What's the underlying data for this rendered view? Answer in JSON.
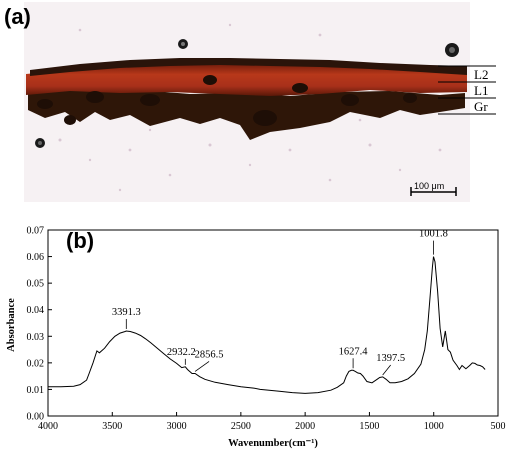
{
  "panel_a": {
    "label": "(a)",
    "layers": [
      "L2",
      "L1",
      "Gr"
    ],
    "scale_bar": "100 μm",
    "colors": {
      "background": "#f7f2f3",
      "red_layer": "#a52a12",
      "dark_layer": "#3a1a0a",
      "ground": "#2a1408"
    }
  },
  "panel_b": {
    "label": "(b)"
  },
  "chart_data": {
    "type": "line",
    "xlabel": "Wavenumber(cm⁻¹)",
    "ylabel": "Absorbance",
    "xlim": [
      4000,
      500
    ],
    "ylim": [
      0,
      0.07
    ],
    "x_ticks": [
      "4000",
      "3500",
      "3000",
      "2500",
      "2000",
      "1500",
      "1000",
      "500"
    ],
    "y_ticks": [
      "0.00",
      "0.01",
      "0.02",
      "0.03",
      "0.04",
      "0.05",
      "0.06",
      "0.07"
    ],
    "grid": false,
    "series": [
      {
        "x": [
          4000,
          3900,
          3800,
          3750,
          3700,
          3680,
          3650,
          3620,
          3600,
          3560,
          3520,
          3480,
          3440,
          3400,
          3391,
          3360,
          3320,
          3280,
          3240,
          3200,
          3150,
          3100,
          3050,
          3000,
          2960,
          2932,
          2915,
          2880,
          2856,
          2820,
          2780,
          2700,
          2600,
          2500,
          2400,
          2350,
          2300,
          2200,
          2100,
          2000,
          1900,
          1800,
          1750,
          1700,
          1680,
          1660,
          1640,
          1627,
          1610,
          1590,
          1570,
          1550,
          1520,
          1480,
          1440,
          1420,
          1397,
          1370,
          1340,
          1300,
          1250,
          1200,
          1150,
          1100,
          1070,
          1050,
          1030,
          1010,
          1002,
          990,
          970,
          950,
          930,
          910,
          890,
          870,
          850,
          820,
          800,
          780,
          750,
          720,
          700,
          680,
          660,
          640,
          620,
          600
        ],
        "y": [
          0.011,
          0.011,
          0.0112,
          0.0118,
          0.0135,
          0.016,
          0.02,
          0.0245,
          0.0238,
          0.0255,
          0.028,
          0.03,
          0.0312,
          0.0318,
          0.032,
          0.0318,
          0.0312,
          0.0303,
          0.029,
          0.0275,
          0.0255,
          0.0235,
          0.0215,
          0.0198,
          0.0182,
          0.0185,
          0.0175,
          0.016,
          0.016,
          0.0148,
          0.0138,
          0.0127,
          0.0118,
          0.011,
          0.0105,
          0.01,
          0.0098,
          0.0093,
          0.0088,
          0.0085,
          0.0088,
          0.0097,
          0.0108,
          0.0125,
          0.015,
          0.0168,
          0.0172,
          0.0172,
          0.0168,
          0.0162,
          0.016,
          0.015,
          0.013,
          0.0125,
          0.0138,
          0.0145,
          0.0147,
          0.0138,
          0.0125,
          0.0125,
          0.013,
          0.014,
          0.016,
          0.0195,
          0.025,
          0.032,
          0.044,
          0.056,
          0.06,
          0.058,
          0.047,
          0.033,
          0.026,
          0.032,
          0.025,
          0.024,
          0.021,
          0.019,
          0.0175,
          0.019,
          0.0178,
          0.019,
          0.02,
          0.0198,
          0.0192,
          0.019,
          0.0185,
          0.0175
        ]
      }
    ],
    "annotations": [
      {
        "text": "3391.3",
        "x": 3391,
        "y": 0.032
      },
      {
        "text": "2932.2",
        "x": 2932,
        "y": 0.0185
      },
      {
        "text": "2856.5",
        "x": 2856,
        "y": 0.016
      },
      {
        "text": "1627.4",
        "x": 1627,
        "y": 0.0172
      },
      {
        "text": "1397.5",
        "x": 1397,
        "y": 0.0147
      },
      {
        "text": "1001.8",
        "x": 1002,
        "y": 0.06
      }
    ]
  }
}
